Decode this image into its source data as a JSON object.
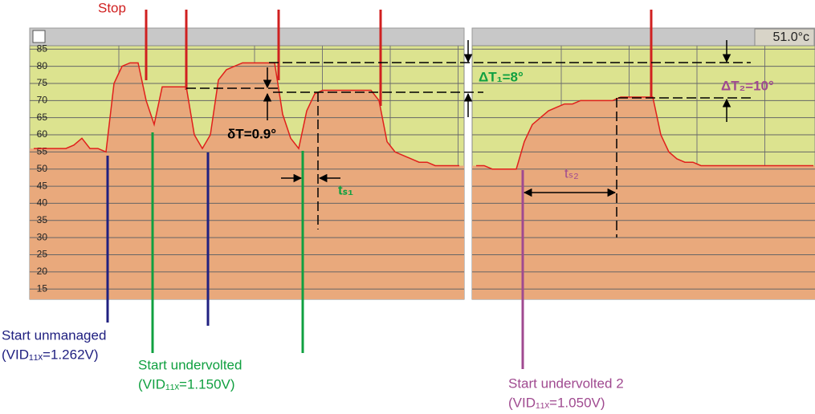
{
  "chart_data": {
    "type": "area",
    "readout": "51.0°c",
    "ylim": [
      12,
      86
    ],
    "yticks": [
      15,
      20,
      25,
      30,
      35,
      40,
      45,
      50,
      55,
      60,
      65,
      70,
      75,
      80,
      85
    ],
    "grid": true,
    "fill_color": "#e9a97c",
    "line_color": "#e0201c",
    "background": "#dce38f",
    "panels": [
      {
        "values": [
          56,
          56,
          56,
          56,
          56,
          57,
          59,
          56,
          56,
          55,
          75,
          80,
          81,
          81,
          70,
          63,
          74,
          74,
          74,
          74,
          60,
          56,
          60,
          76,
          79,
          80,
          81,
          81,
          81,
          81,
          81,
          66,
          59,
          56,
          67,
          72,
          73,
          73,
          73,
          73,
          73,
          73,
          73,
          70,
          58,
          55,
          54,
          53,
          52,
          52,
          51,
          51,
          51,
          51
        ]
      },
      {
        "values": [
          51,
          51,
          50,
          50,
          50,
          50,
          58,
          63,
          65,
          67,
          68,
          69,
          69,
          70,
          70,
          70,
          70,
          70,
          71,
          71,
          71,
          71,
          71,
          60,
          55,
          53,
          52,
          52,
          51,
          51,
          51,
          51,
          51,
          51,
          51,
          51,
          51,
          51,
          51,
          51,
          51,
          51,
          51
        ]
      }
    ],
    "annotations": {
      "stop": "Stop",
      "delta_t1": "ΔT₁=8°",
      "delta_t2": "ΔT₂=10°",
      "small_delta": "δT=0.9°",
      "ts1": "tₛ₁",
      "ts2": "tₛ₂",
      "start_unmanaged": "Start unmanaged",
      "vid_unmanaged": "(VID₁₁ₓ=1.262V)",
      "start_undervolted": "Start undervolted",
      "vid_undervolted": "(VID₁₁ₓ=1.150V)",
      "start_undervolted2": "Start undervolted 2",
      "vid_undervolted2": "(VID₁₁ₓ=1.050V)"
    }
  }
}
